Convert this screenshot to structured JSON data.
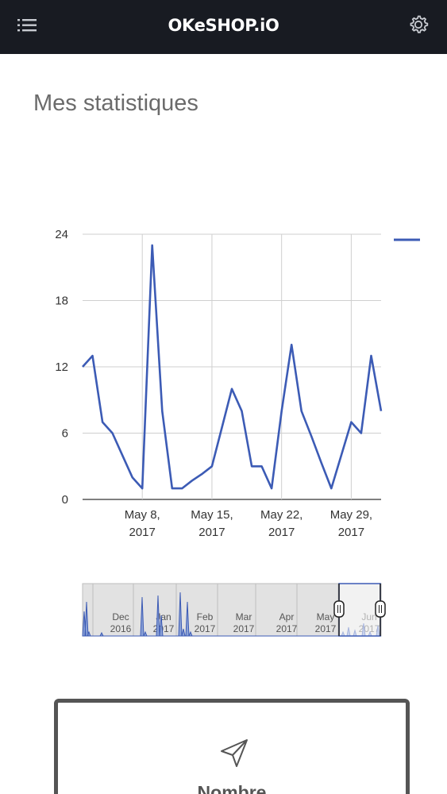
{
  "app": {
    "brand": "OKeSHOP.iO"
  },
  "icons": {
    "menu": "list-menu-icon",
    "settings": "gear-icon",
    "send": "send-arrow-icon"
  },
  "page": {
    "title": "Mes statistiques"
  },
  "colors": {
    "topbar": "#181b22",
    "series": "#3c5bb5",
    "range_fill": "#8aa1d6"
  },
  "chart_data": {
    "type": "line",
    "title": "",
    "xlabel": "",
    "ylabel": "",
    "ylim": [
      0,
      24
    ],
    "yticks": [
      "0",
      "6",
      "12",
      "18",
      "24"
    ],
    "xticks": [
      {
        "date": "2017-05-08",
        "line1": "May 8,",
        "line2": "2017"
      },
      {
        "date": "2017-05-15",
        "line1": "May 15,",
        "line2": "2017"
      },
      {
        "date": "2017-05-22",
        "line1": "May 22,",
        "line2": "2017"
      },
      {
        "date": "2017-05-29",
        "line1": "May 29,",
        "line2": "2017"
      }
    ],
    "grid": true,
    "legend": "top-right",
    "series": [
      {
        "x": [
          "2017-05-02",
          "2017-05-03",
          "2017-05-04",
          "2017-05-05",
          "2017-05-06",
          "2017-05-07",
          "2017-05-08",
          "2017-05-09",
          "2017-05-10",
          "2017-05-11",
          "2017-05-12",
          "2017-05-13",
          "2017-05-14",
          "2017-05-15",
          "2017-05-16",
          "2017-05-17",
          "2017-05-18",
          "2017-05-19",
          "2017-05-20",
          "2017-05-21",
          "2017-05-22",
          "2017-05-23",
          "2017-05-24",
          "2017-05-25",
          "2017-05-26",
          "2017-05-27",
          "2017-05-28",
          "2017-05-29",
          "2017-05-30",
          "2017-05-31",
          "2017-06-01"
        ],
        "values": [
          12,
          13,
          7,
          6,
          4,
          2,
          1,
          23,
          8,
          1,
          1,
          1.7,
          2.3,
          3,
          6.5,
          10,
          8,
          3,
          3,
          1,
          8,
          14,
          8,
          5.7,
          3.3,
          1,
          4,
          7,
          6,
          13,
          8
        ]
      }
    ]
  },
  "range_selector": {
    "labels": [
      {
        "month": "Dec",
        "year": "2016"
      },
      {
        "month": "Jan",
        "year": "2017"
      },
      {
        "month": "Feb",
        "year": "2017"
      },
      {
        "month": "Mar",
        "year": "2017"
      },
      {
        "month": "Apr",
        "year": "2017"
      },
      {
        "month": "May",
        "year": "2017"
      },
      {
        "month": "Jun",
        "year": "2017"
      }
    ],
    "selected_from": "2017-05-02",
    "selected_to": "2017-06-01"
  },
  "card": {
    "label": "Nombre"
  }
}
